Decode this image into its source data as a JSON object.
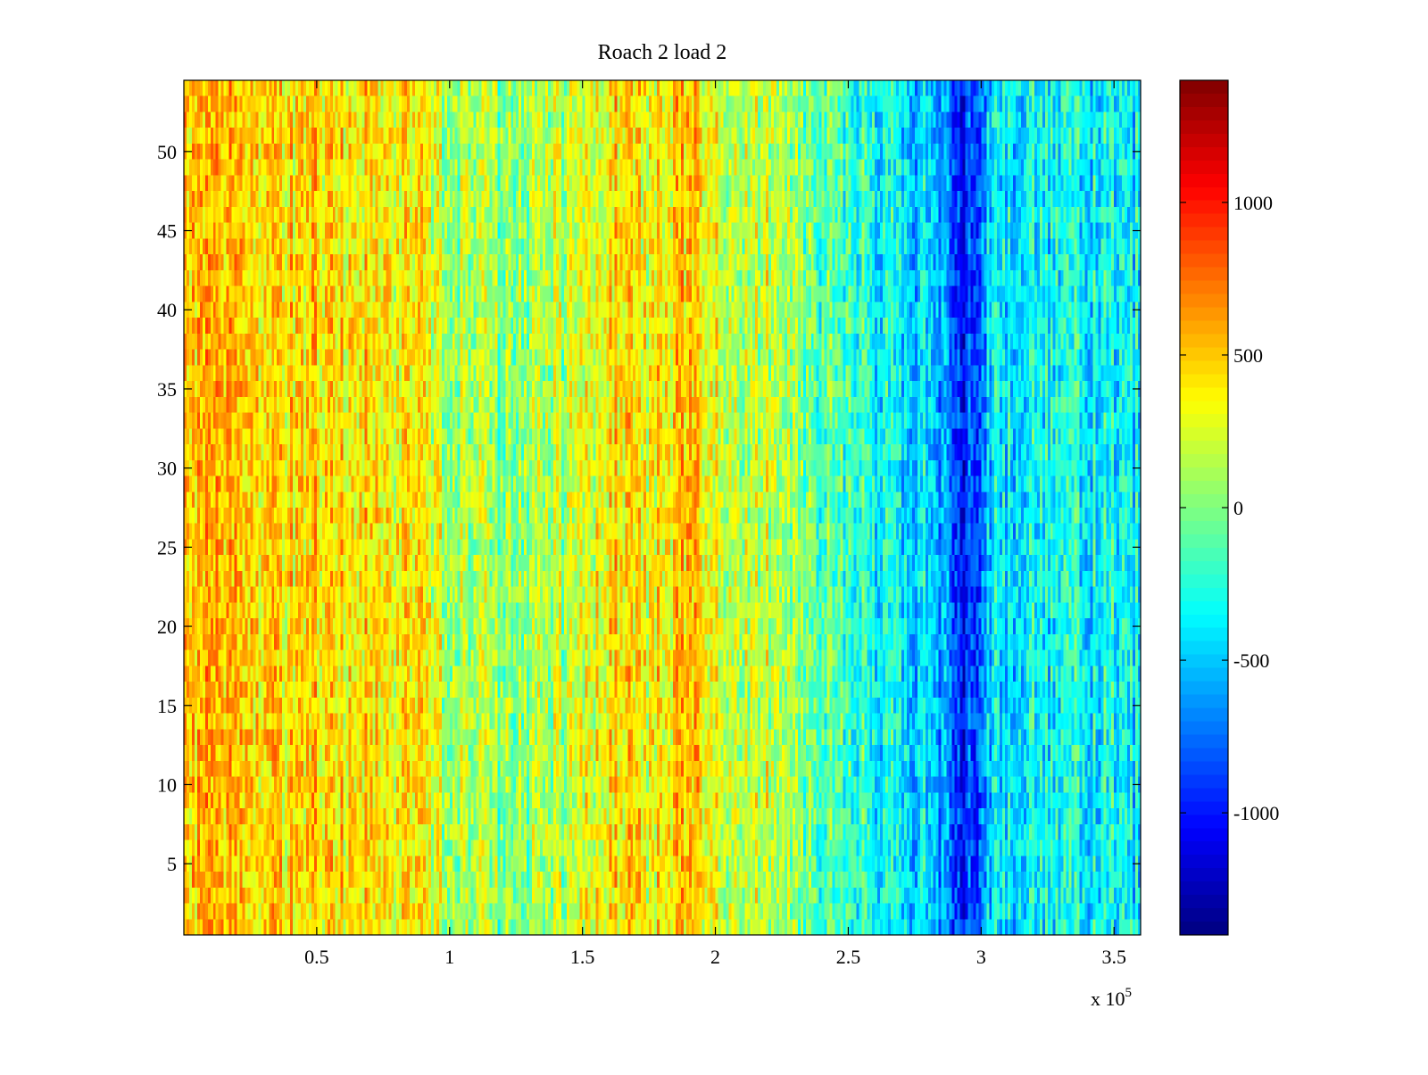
{
  "chart_data": {
    "type": "heatmap",
    "title": "Roach 2 load 2",
    "xlabel": "",
    "ylabel": "",
    "x_multiplier_label": "x 10",
    "x_multiplier_exponent": "5",
    "x_range": [
      0,
      3.6
    ],
    "y_range": [
      0.5,
      54.5
    ],
    "rows": 54,
    "columns": 360,
    "x_ticks": [
      {
        "value": 0.5,
        "label": "0.5"
      },
      {
        "value": 1,
        "label": "1"
      },
      {
        "value": 1.5,
        "label": "1.5"
      },
      {
        "value": 2,
        "label": "2"
      },
      {
        "value": 2.5,
        "label": "2.5"
      },
      {
        "value": 3,
        "label": "3"
      },
      {
        "value": 3.5,
        "label": "3.5"
      }
    ],
    "y_ticks": [
      {
        "value": 5,
        "label": "5"
      },
      {
        "value": 10,
        "label": "10"
      },
      {
        "value": 15,
        "label": "15"
      },
      {
        "value": 20,
        "label": "20"
      },
      {
        "value": 25,
        "label": "25"
      },
      {
        "value": 30,
        "label": "30"
      },
      {
        "value": 35,
        "label": "35"
      },
      {
        "value": 40,
        "label": "40"
      },
      {
        "value": 45,
        "label": "45"
      },
      {
        "value": 50,
        "label": "50"
      }
    ],
    "colorbar": {
      "colormap": "jet",
      "range": [
        -1400,
        1400
      ],
      "ticks": [
        {
          "value": 1000,
          "label": "1000"
        },
        {
          "value": 500,
          "label": "500"
        },
        {
          "value": 0,
          "label": "0"
        },
        {
          "value": -500,
          "label": "-500"
        },
        {
          "value": -1000,
          "label": "-1000"
        }
      ]
    },
    "column_profile": [
      {
        "x": 0.0,
        "value": 520
      },
      {
        "x": 0.2,
        "value": 470
      },
      {
        "x": 0.5,
        "value": 440
      },
      {
        "x": 0.75,
        "value": 420
      },
      {
        "x": 0.9,
        "value": 300
      },
      {
        "x": 1.0,
        "value": 130
      },
      {
        "x": 1.2,
        "value": 30
      },
      {
        "x": 1.4,
        "value": 120
      },
      {
        "x": 1.55,
        "value": 280
      },
      {
        "x": 1.63,
        "value": 480
      },
      {
        "x": 1.75,
        "value": 300
      },
      {
        "x": 1.9,
        "value": 560
      },
      {
        "x": 1.96,
        "value": 380
      },
      {
        "x": 2.1,
        "value": 150
      },
      {
        "x": 2.25,
        "value": 220
      },
      {
        "x": 2.4,
        "value": -120
      },
      {
        "x": 2.6,
        "value": -300
      },
      {
        "x": 2.8,
        "value": -460
      },
      {
        "x": 2.93,
        "value": -980
      },
      {
        "x": 3.05,
        "value": -420
      },
      {
        "x": 3.3,
        "value": -330
      },
      {
        "x": 3.6,
        "value": -360
      }
    ],
    "legend": "colorbar-right",
    "grid": false
  }
}
